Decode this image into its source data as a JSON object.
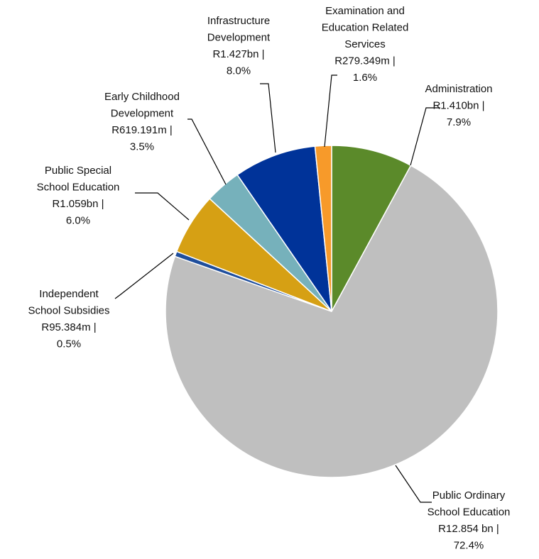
{
  "chart_data": {
    "type": "pie",
    "title": "",
    "slices": [
      {
        "name": "Administration",
        "value_text": "R1.410bn",
        "value_bn": 1.41,
        "percent": 7.9,
        "percent_text": "7.9%",
        "color": "#5b8a2a"
      },
      {
        "name": "Public Ordinary School Education",
        "value_text": "R12.854 bn",
        "value_bn": 12.854,
        "percent": 72.4,
        "percent_text": "72.4%",
        "color": "#bfbfbf"
      },
      {
        "name": "Independent School Subsidies",
        "value_text": "R95.384m",
        "value_bn": 0.095384,
        "percent": 0.5,
        "percent_text": "0.5%",
        "color": "#1f4e9c"
      },
      {
        "name": "Public Special School Education",
        "value_text": "R1.059bn",
        "value_bn": 1.059,
        "percent": 6.0,
        "percent_text": "6.0%",
        "color": "#d6a014"
      },
      {
        "name": "Early Childhood Development",
        "value_text": "R619.191m",
        "value_bn": 0.619191,
        "percent": 3.5,
        "percent_text": "3.5%",
        "color": "#76b1bb"
      },
      {
        "name": "Infrastructure Development",
        "value_text": "R1.427bn",
        "value_bn": 1.427,
        "percent": 8.0,
        "percent_text": "8.0%",
        "color": "#003399"
      },
      {
        "name": "Examination and Education Related Services",
        "value_text": "R279.349m",
        "value_bn": 0.279349,
        "percent": 1.6,
        "percent_text": "1.6%",
        "color": "#f79a2a"
      }
    ],
    "labels": [
      {
        "lines": [
          "Administration",
          "R1.410bn |",
          "7.9%"
        ]
      },
      {
        "lines": [
          "Public Ordinary",
          "School Education",
          "R12.854 bn |",
          "72.4%"
        ]
      },
      {
        "lines": [
          "Independent",
          "School Subsidies",
          "R95.384m |",
          "0.5%"
        ]
      },
      {
        "lines": [
          "Public Special",
          "School Education",
          "R1.059bn |",
          "6.0%"
        ]
      },
      {
        "lines": [
          "Early Childhood",
          "Development",
          "R619.191m |",
          "3.5%"
        ]
      },
      {
        "lines": [
          "Infrastructure",
          "Development",
          "R1.427bn |",
          "8.0%"
        ]
      },
      {
        "lines": [
          "Examination and",
          "Education Related",
          "Services",
          "R279.349m |",
          "1.6%"
        ]
      }
    ],
    "start_angle_deg": 0,
    "direction": "clockwise",
    "legend": "none"
  }
}
